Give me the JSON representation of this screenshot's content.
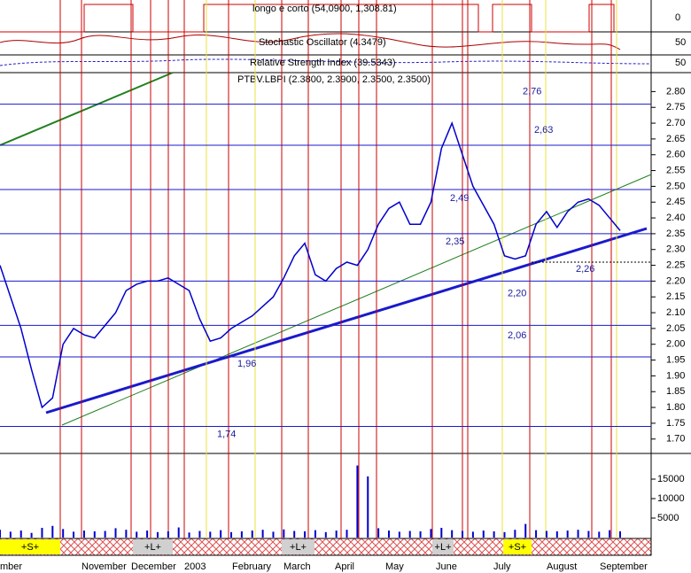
{
  "chart_data": {
    "type": "line",
    "title": "PTBV.LBPI (2.3800, 2.3900, 2.3500, 2.3500)",
    "indicators": [
      "longo e corto (54,0900, 1,308.81)",
      "Stochastic Oscillator (4.3479)",
      "Relative Strength Index (39.5343)"
    ],
    "indicator_ticks": [
      0,
      50,
      50
    ],
    "months": [
      "mber",
      "November",
      "December",
      "2003",
      "February",
      "March",
      "April",
      "May",
      "June",
      "July",
      "August",
      "September"
    ],
    "signals": [
      "+S+",
      "+L+",
      "+L+",
      "+L+",
      "+S+"
    ],
    "series": [
      {
        "name": "PTBV.LBPI",
        "color": "#0000cc",
        "values": [
          2.25,
          2.15,
          2.05,
          1.92,
          1.8,
          1.83,
          2.0,
          2.05,
          2.03,
          2.02,
          2.06,
          2.1,
          2.17,
          2.19,
          2.2,
          2.2,
          2.21,
          2.19,
          2.17,
          2.08,
          2.01,
          2.02,
          2.05,
          2.07,
          2.09,
          2.12,
          2.15,
          2.21,
          2.28,
          2.32,
          2.22,
          2.2,
          2.24,
          2.26,
          2.25,
          2.3,
          2.38,
          2.43,
          2.45,
          2.38,
          2.38,
          2.45,
          2.62,
          2.7,
          2.6,
          2.5,
          2.44,
          2.38,
          2.28,
          2.27,
          2.28,
          2.38,
          2.42,
          2.37,
          2.42,
          2.45,
          2.46,
          2.44,
          2.4,
          2.36
        ]
      }
    ],
    "volume": {
      "color": "#0000cc",
      "values": [
        2000,
        1500,
        1800,
        1200,
        2500,
        3000,
        2200,
        1500,
        1800,
        1600,
        1700,
        2400,
        2000,
        1500,
        1800,
        1400,
        1600,
        2600,
        1300,
        1700,
        1500,
        1900,
        1400,
        1600,
        1800,
        2000,
        1500,
        2100,
        1700,
        1600,
        1900,
        1400,
        1800,
        2000,
        18500,
        15700,
        2400,
        1800,
        1500,
        1700,
        1600,
        2200,
        2500,
        1900,
        1700,
        1500,
        1800,
        1600,
        1400,
        2000,
        3500,
        1900,
        1700,
        1600,
        1800,
        2000,
        1700,
        1500,
        1900,
        1600
      ],
      "ylim": [
        0,
        20000
      ],
      "yticks": [
        5000,
        10000,
        15000
      ]
    },
    "levels": [
      {
        "value": 2.76,
        "label": "2,76"
      },
      {
        "value": 2.63,
        "label": "2,63"
      },
      {
        "value": 2.49,
        "label": "2,49"
      },
      {
        "value": 2.35,
        "label": "2,35"
      },
      {
        "value": 2.2,
        "label": "2,20"
      },
      {
        "value": 2.06,
        "label": "2,06"
      },
      {
        "value": 1.96,
        "label": "1,96"
      },
      {
        "value": 1.74,
        "label": "1,74"
      },
      {
        "value": 2.26,
        "label": "2,26"
      }
    ],
    "ylim": [
      1.66,
      2.86
    ],
    "yticks": [
      {
        "value": 1.7,
        "label": "1.70"
      },
      {
        "value": 1.75,
        "label": "1.75"
      },
      {
        "value": 1.8,
        "label": "1.80"
      },
      {
        "value": 1.85,
        "label": "1.85"
      },
      {
        "value": 1.9,
        "label": "1.90"
      },
      {
        "value": 1.95,
        "label": "1.95"
      },
      {
        "value": 2.0,
        "label": "2.00"
      },
      {
        "value": 2.05,
        "label": "2.05"
      },
      {
        "value": 2.1,
        "label": "2.10"
      },
      {
        "value": 2.15,
        "label": "2.15"
      },
      {
        "value": 2.2,
        "label": "2.20"
      },
      {
        "value": 2.25,
        "label": "2.25"
      },
      {
        "value": 2.3,
        "label": "2.30"
      },
      {
        "value": 2.35,
        "label": "2.35"
      },
      {
        "value": 2.4,
        "label": "2.40"
      },
      {
        "value": 2.45,
        "label": "2.45"
      },
      {
        "value": 2.5,
        "label": "2.50"
      },
      {
        "value": 2.55,
        "label": "2.55"
      },
      {
        "value": 2.6,
        "label": "2.60"
      },
      {
        "value": 2.65,
        "label": "2.65"
      },
      {
        "value": 2.7,
        "label": "2.70"
      },
      {
        "value": 2.75,
        "label": "2.75"
      },
      {
        "value": 2.8,
        "label": "2.80"
      }
    ]
  }
}
